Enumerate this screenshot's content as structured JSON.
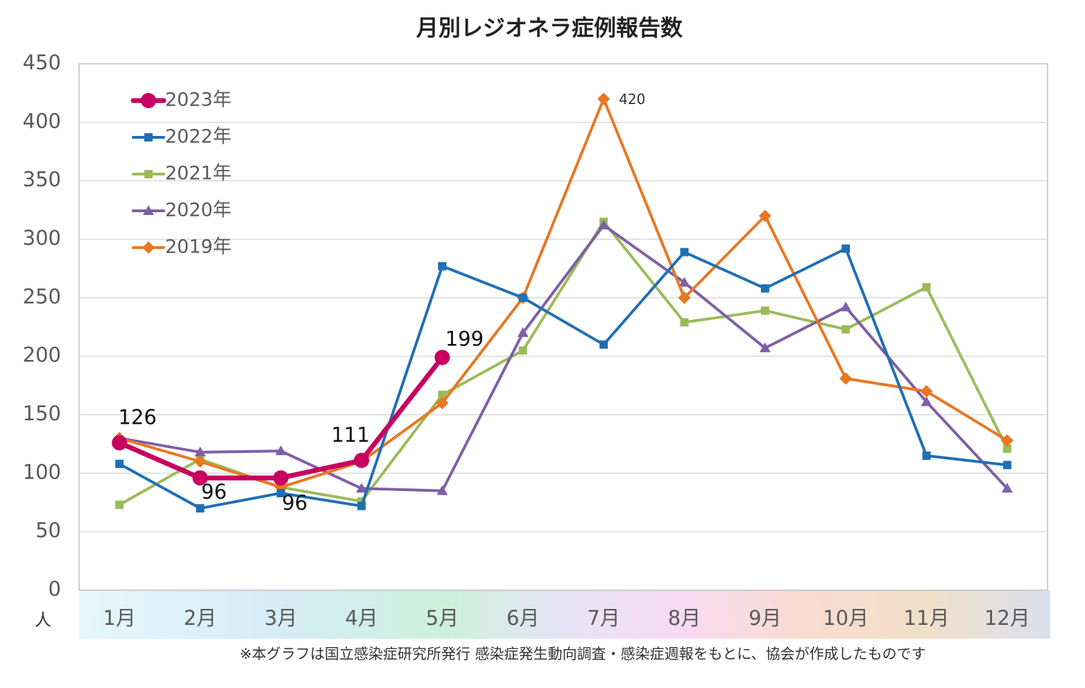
{
  "chart_data": {
    "type": "line",
    "title": "月別レジオネラ症例報告数",
    "y_unit": "人",
    "footnote": "※本グラフは国立感染症研究所発行 感染症発生動向調査・感染症週報をもとに、協会が作成したものです",
    "categories": [
      "1月",
      "2月",
      "3月",
      "4月",
      "5月",
      "6月",
      "7月",
      "8月",
      "9月",
      "10月",
      "11月",
      "12月"
    ],
    "ylim": [
      0,
      450
    ],
    "yticks": [
      0,
      50,
      100,
      150,
      200,
      250,
      300,
      350,
      400,
      450
    ],
    "grid": true,
    "legend": "upper-left",
    "series": [
      {
        "name": "2023年",
        "color": "#c8005f",
        "marker": "circle",
        "values": [
          126,
          96,
          96,
          111,
          199,
          null,
          null,
          null,
          null,
          null,
          null,
          null
        ],
        "value_labels": [
          "126",
          "96",
          "96",
          "111",
          "199",
          null,
          null,
          null,
          null,
          null,
          null,
          null
        ]
      },
      {
        "name": "2022年",
        "color": "#1f6fb4",
        "marker": "square",
        "values": [
          108,
          70,
          83,
          72,
          277,
          250,
          210,
          289,
          258,
          292,
          115,
          107
        ]
      },
      {
        "name": "2021年",
        "color": "#9bbb59",
        "marker": "square",
        "values": [
          73,
          112,
          88,
          76,
          167,
          205,
          315,
          229,
          239,
          223,
          259,
          121
        ]
      },
      {
        "name": "2020年",
        "color": "#7f5ea6",
        "marker": "triangle",
        "values": [
          130,
          118,
          119,
          87,
          85,
          220,
          312,
          263,
          207,
          242,
          161,
          87
        ]
      },
      {
        "name": "2019年",
        "color": "#e87722",
        "marker": "diamond",
        "values": [
          130,
          110,
          88,
          110,
          160,
          250,
          420,
          250,
          320,
          181,
          170,
          128
        ],
        "value_labels": [
          null,
          null,
          null,
          null,
          null,
          null,
          "420",
          null,
          null,
          null,
          null,
          null
        ]
      }
    ]
  }
}
